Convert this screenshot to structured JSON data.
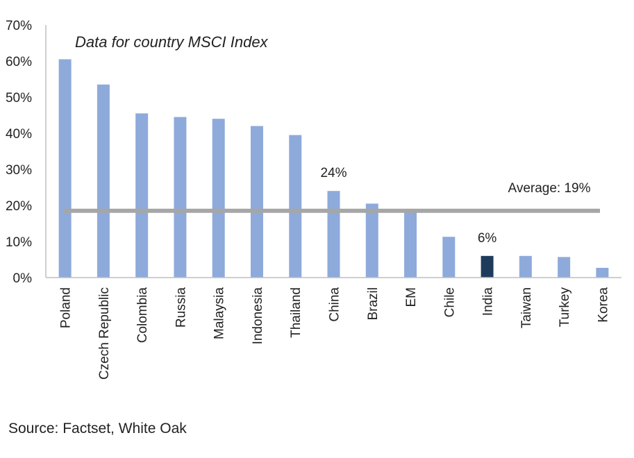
{
  "chart_data": {
    "type": "bar",
    "title": "Data for country MSCI Index",
    "categories": [
      "Poland",
      "Czech Republic",
      "Colombia",
      "Russia",
      "Malaysia",
      "Indonesia",
      "Thailand",
      "China",
      "Brazil",
      "EM",
      "Chile",
      "India",
      "Taiwan",
      "Turkey",
      "Korea"
    ],
    "values": [
      60.5,
      53.5,
      45.5,
      44.5,
      44,
      42,
      39.5,
      24,
      20.5,
      18.5,
      11.3,
      6,
      6,
      5.7,
      2.7
    ],
    "highlight_category": "India",
    "ylim": [
      0,
      70
    ],
    "yticks": [
      "0%",
      "10%",
      "20%",
      "30%",
      "40%",
      "50%",
      "60%",
      "70%"
    ],
    "ytick_values": [
      0,
      10,
      20,
      30,
      40,
      50,
      60,
      70
    ],
    "grid": false,
    "average": {
      "value": 18.5,
      "label": "Average: 19%"
    },
    "data_labels": [
      {
        "category": "China",
        "text": "24%"
      },
      {
        "category": "India",
        "text": "6%"
      }
    ],
    "colors": {
      "bar": "#8eaadb",
      "highlight": "#1f3b5c",
      "average_line": "#a6a6a6",
      "axis": "#bfbfbf"
    }
  },
  "source": "Source: Factset, White Oak"
}
